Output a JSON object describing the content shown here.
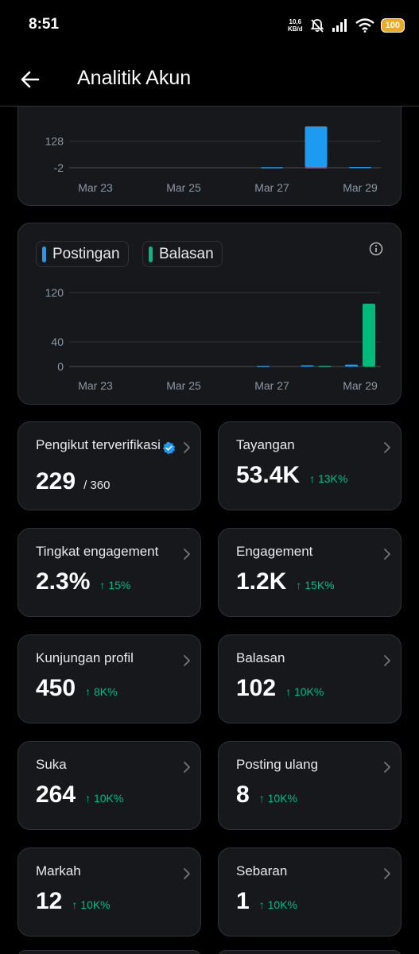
{
  "status_bar": {
    "time": "8:51",
    "net_speed_value": "10,6",
    "net_speed_unit": "KB/d",
    "battery": "100"
  },
  "header": {
    "title": "Analitik Akun"
  },
  "chart_top": {
    "y_ticks": [
      "128",
      "-2"
    ],
    "x_ticks": [
      "Mar 23",
      "Mar 25",
      "Mar 27",
      "Mar 29"
    ]
  },
  "chart_bottom": {
    "legend": [
      "Postingan",
      "Balasan"
    ],
    "y_ticks": [
      "120",
      "40",
      "0"
    ],
    "x_ticks": [
      "Mar 23",
      "Mar 25",
      "Mar 27",
      "Mar 29"
    ]
  },
  "chart_data": [
    {
      "type": "bar",
      "categories": [
        "Mar 23",
        "Mar 24",
        "Mar 25",
        "Mar 26",
        "Mar 27",
        "Mar 28",
        "Mar 29"
      ],
      "series": [
        {
          "values": [
            0,
            0,
            0,
            0,
            1,
            200,
            2
          ],
          "color": "#1d9bf0"
        },
        {
          "values": [
            0,
            0,
            0,
            0,
            0,
            -1,
            0
          ],
          "color": "#f4212e"
        }
      ],
      "ylim": [
        -2,
        200
      ]
    },
    {
      "type": "bar",
      "categories": [
        "Mar 23",
        "Mar 24",
        "Mar 25",
        "Mar 26",
        "Mar 27",
        "Mar 28",
        "Mar 29"
      ],
      "series": [
        {
          "name": "Postingan",
          "values": [
            0,
            0,
            0,
            0,
            1,
            2,
            3
          ],
          "color": "#1d9bf0"
        },
        {
          "name": "Balasan",
          "values": [
            0,
            0,
            0,
            0,
            0,
            1,
            102
          ],
          "color": "#00ba7c"
        }
      ],
      "ylim": [
        0,
        120
      ]
    }
  ],
  "stats": [
    {
      "title": "Pengikut terverifikasi",
      "value": "229",
      "sub": "/ 360",
      "change": "",
      "verified": true
    },
    {
      "title": "Tayangan",
      "value": "53.4K",
      "sub": "",
      "change": "↑ 13K%"
    },
    {
      "title": "Tingkat engagement",
      "value": "2.3%",
      "sub": "",
      "change": "↑ 15%"
    },
    {
      "title": "Engagement",
      "value": "1.2K",
      "sub": "",
      "change": "↑ 15K%"
    },
    {
      "title": "Kunjungan profil",
      "value": "450",
      "sub": "",
      "change": "↑ 8K%"
    },
    {
      "title": "Balasan",
      "value": "102",
      "sub": "",
      "change": "↑ 10K%"
    },
    {
      "title": "Suka",
      "value": "264",
      "sub": "",
      "change": "↑ 10K%"
    },
    {
      "title": "Posting ulang",
      "value": "8",
      "sub": "",
      "change": "↑ 10K%"
    },
    {
      "title": "Markah",
      "value": "12",
      "sub": "",
      "change": "↑ 10K%"
    },
    {
      "title": "Sebaran",
      "value": "1",
      "sub": "",
      "change": "↑ 10K%"
    }
  ],
  "colors": {
    "background": "#000000",
    "card": "#16181c",
    "border": "#2f3336",
    "accent_blue": "#1d9bf0",
    "accent_green": "#00ba7c"
  }
}
